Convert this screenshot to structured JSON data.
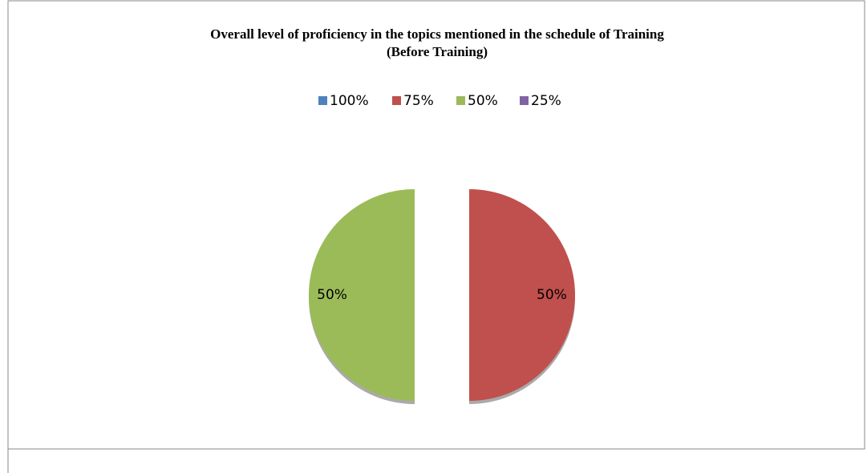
{
  "chart_data": {
    "type": "pie",
    "title": "Overall level of proficiency in the topics mentioned in the schedule of Training",
    "subtitle": "(Before Training)",
    "categories": [
      "100%",
      "75%",
      "50%",
      "25%"
    ],
    "values": [
      0,
      50,
      50,
      0
    ],
    "colors": [
      "#4f81bd",
      "#c0504d",
      "#9bbb59",
      "#8064a2"
    ],
    "legend": "top"
  }
}
